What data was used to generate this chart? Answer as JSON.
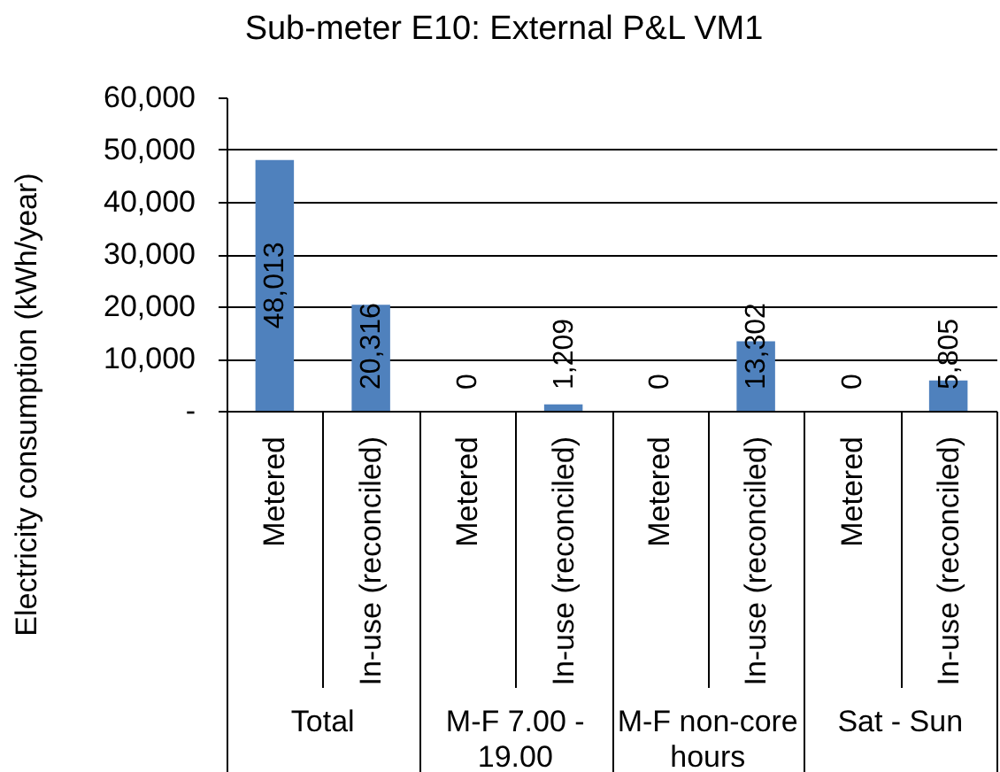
{
  "chart_data": {
    "type": "bar",
    "title": "Sub-meter E10: External P&L VM1",
    "ylabel": "Electricity consumption (kWh/year)",
    "categories": [
      "Metered",
      "In-use (reconciled)",
      "Metered",
      "In-use (reconciled)",
      "Metered",
      "In-use (reconciled)",
      "Metered",
      "In-use (reconciled)"
    ],
    "values": [
      48013,
      20316,
      0,
      1209,
      0,
      13302,
      0,
      5805
    ],
    "color": "#4f81bd",
    "value_labels": [
      "48,013",
      "20,316",
      "0",
      "1,209",
      "0",
      "13,302",
      "0",
      "5,805"
    ],
    "ylim": [
      0,
      60000
    ],
    "yticks": [
      {
        "value": 0,
        "label": "-"
      },
      {
        "value": 10000,
        "label": "10,000"
      },
      {
        "value": 20000,
        "label": "20,000"
      },
      {
        "value": 30000,
        "label": "30,000"
      },
      {
        "value": 40000,
        "label": "40,000"
      },
      {
        "value": 50000,
        "label": "50,000"
      },
      {
        "value": 60000,
        "label": "60,000"
      }
    ],
    "grid": "y",
    "annotations": [
      "Total",
      "M-F 7.00 - 19.00",
      "M-F non-core hours",
      "Sat - Sun"
    ]
  }
}
